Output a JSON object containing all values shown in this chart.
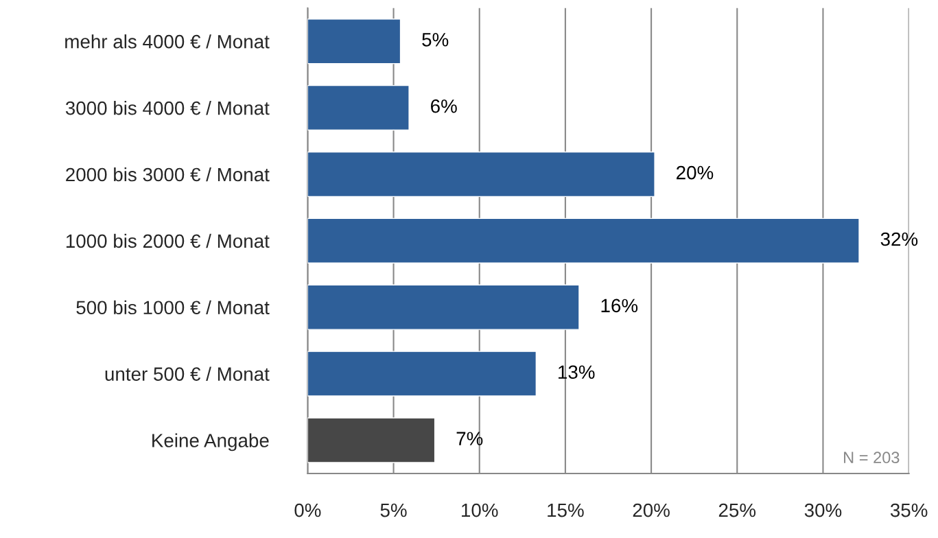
{
  "chart_data": {
    "type": "bar",
    "orientation": "horizontal",
    "categories": [
      "mehr als 4000 € / Monat",
      "3000 bis 4000 € / Monat",
      "2000 bis 3000 € / Monat",
      "1000 bis 2000 € / Monat",
      "500 bis 1000 € / Monat",
      "unter 500 € / Monat",
      "Keine Angabe"
    ],
    "values": [
      5.4,
      5.9,
      20.2,
      32.1,
      15.8,
      13.3,
      7.4
    ],
    "colors": [
      "#2e5f99",
      "#2e5f99",
      "#2e5f99",
      "#2e5f99",
      "#2e5f99",
      "#2e5f99",
      "#474747"
    ],
    "value_labels": [
      "5%",
      "6%",
      "20%",
      "32%",
      "16%",
      "13%",
      "7%"
    ],
    "xlim": [
      0,
      35
    ],
    "xticks": [
      {
        "value": 0,
        "label": "0%"
      },
      {
        "value": 5,
        "label": "5%"
      },
      {
        "value": 10,
        "label": "10%"
      },
      {
        "value": 15,
        "label": "15%"
      },
      {
        "value": 20,
        "label": "20%"
      },
      {
        "value": 25,
        "label": "25%"
      },
      {
        "value": 30,
        "label": "30%"
      },
      {
        "value": 35,
        "label": "35%"
      }
    ],
    "grid": "x",
    "annotations": [
      "N = 203"
    ]
  }
}
